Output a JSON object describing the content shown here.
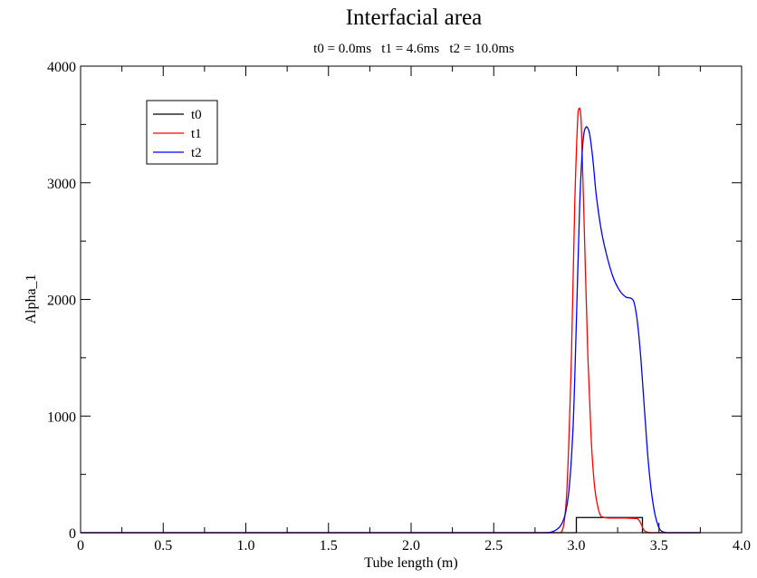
{
  "chart_data": {
    "type": "line",
    "title": "Interfacial area",
    "subtitle": "t0 = 0.0ms   t1 = 4.6ms   t2 = 10.0ms",
    "xlabel": "Tube length (m)",
    "ylabel": "Alpha_1",
    "xlim": [
      0,
      4.0
    ],
    "ylim": [
      0,
      4000
    ],
    "x_ticks": [
      0,
      0.5,
      1.0,
      1.5,
      2.0,
      2.5,
      3.0,
      3.5,
      4.0
    ],
    "x_tick_labels": [
      "0",
      "0.5",
      "1.0",
      "1.5",
      "2.0",
      "2.5",
      "3.0",
      "3.5",
      "4.0"
    ],
    "y_ticks": [
      0,
      1000,
      2000,
      3000,
      4000
    ],
    "y_tick_labels": [
      "0",
      "1000",
      "2000",
      "3000",
      "4000"
    ],
    "grid": false,
    "legend_position": "top-left",
    "series": [
      {
        "name": "t0",
        "color": "#000000",
        "x": [
          0,
          2.99,
          3.0,
          3.0,
          3.4,
          3.4,
          3.41,
          3.75
        ],
        "y": [
          0,
          0,
          0,
          130,
          130,
          0,
          0,
          0
        ]
      },
      {
        "name": "t1",
        "color": "#ff0000",
        "x": [
          0,
          2.9,
          2.94,
          2.97,
          2.99,
          3.01,
          3.02,
          3.03,
          3.05,
          3.07,
          3.09,
          3.11,
          3.13,
          3.15,
          3.2,
          3.3,
          3.37,
          3.39,
          3.41,
          3.45,
          3.75
        ],
        "y": [
          0,
          0,
          300,
          1500,
          2800,
          3600,
          3640,
          3500,
          2500,
          1500,
          800,
          400,
          220,
          140,
          125,
          125,
          120,
          80,
          20,
          0,
          0
        ]
      },
      {
        "name": "t2",
        "color": "#0000ff",
        "x": [
          0,
          2.8,
          2.9,
          2.95,
          2.98,
          3.0,
          3.02,
          3.04,
          3.06,
          3.08,
          3.1,
          3.12,
          3.15,
          3.18,
          3.22,
          3.26,
          3.3,
          3.33,
          3.35,
          3.37,
          3.39,
          3.41,
          3.43,
          3.45,
          3.47,
          3.49,
          3.51,
          3.55,
          3.75
        ],
        "y": [
          0,
          0,
          50,
          300,
          900,
          1800,
          2800,
          3350,
          3480,
          3420,
          3200,
          2900,
          2600,
          2400,
          2200,
          2080,
          2020,
          2010,
          1970,
          1800,
          1500,
          1100,
          700,
          400,
          200,
          80,
          20,
          0,
          0
        ]
      }
    ]
  }
}
